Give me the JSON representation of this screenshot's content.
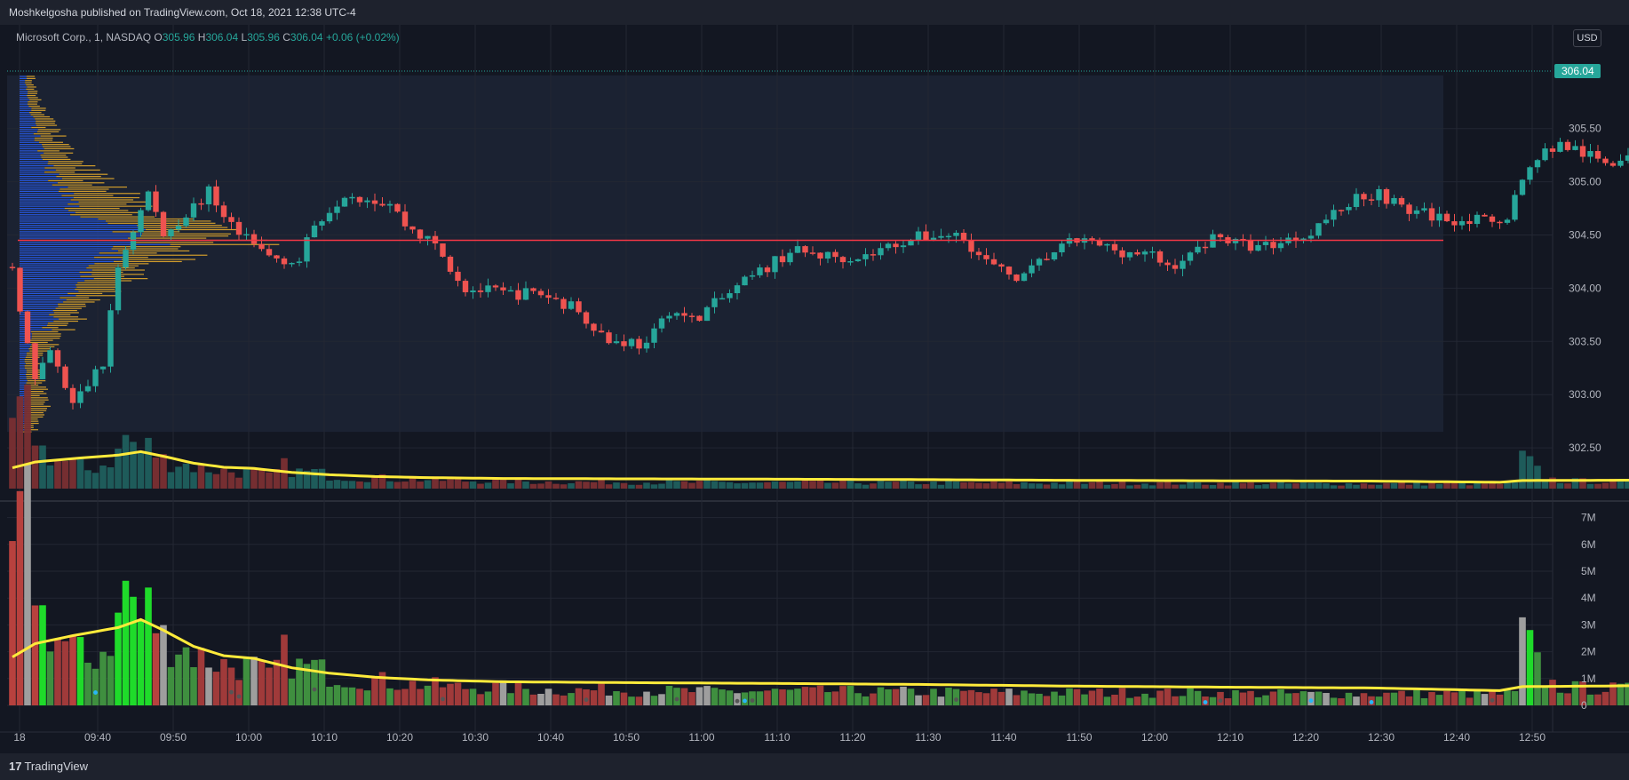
{
  "header": {
    "publisher": "Moshkelgosha published on TradingView.com, Oct 18, 2021 12:38 UTC-4"
  },
  "legend": {
    "symbol": "Microsoft Corp., 1, NASDAQ",
    "o_label": "O",
    "o": "305.96",
    "h_label": "H",
    "h": "306.04",
    "l_label": "L",
    "l": "305.96",
    "c_label": "C",
    "c": "306.04",
    "change": "+0.06 (+0.02%)"
  },
  "currency": "USD",
  "last_price": "306.04",
  "footer": {
    "logo_mark": "17",
    "logo_text": "TradingView"
  },
  "colors": {
    "background": "#131722",
    "up": "#26a69a",
    "down": "#ef5350",
    "ma_line": "#ffeb3b",
    "poc_line": "#f23645",
    "profile_up": "#2962ff",
    "profile_down": "#f0b12c",
    "vol_green": "#4caf50",
    "vol_red": "#c0504d",
    "vol_gray": "#9e9e9e",
    "vol_bright": "#1fdb2a"
  },
  "chart_data": [
    {
      "type": "candlestick",
      "name": "price",
      "y_ticks": [
        "302.50",
        "303.00",
        "303.50",
        "304.00",
        "304.50",
        "305.00",
        "305.50"
      ],
      "ylim": [
        302.2,
        306.3
      ],
      "poc_price": 304.45,
      "close_path": [
        [
          0,
          304.2
        ],
        [
          3,
          303.1
        ],
        [
          5,
          303.4
        ],
        [
          8,
          302.9
        ],
        [
          12,
          303.3
        ],
        [
          14,
          304.2
        ],
        [
          18,
          304.9
        ],
        [
          20,
          304.5
        ],
        [
          26,
          304.9
        ],
        [
          30,
          304.5
        ],
        [
          34,
          304.3
        ],
        [
          38,
          304.25
        ],
        [
          40,
          304.6
        ],
        [
          44,
          304.9
        ],
        [
          50,
          304.8
        ],
        [
          52,
          304.6
        ],
        [
          56,
          304.4
        ],
        [
          60,
          304.0
        ],
        [
          65,
          303.95
        ],
        [
          70,
          303.95
        ],
        [
          75,
          303.8
        ],
        [
          79,
          303.5
        ],
        [
          82,
          303.5
        ],
        [
          84,
          303.45
        ],
        [
          87,
          303.8
        ],
        [
          90,
          303.7
        ],
        [
          93,
          303.85
        ],
        [
          98,
          304.1
        ],
        [
          103,
          304.35
        ],
        [
          108,
          304.3
        ],
        [
          113,
          304.3
        ],
        [
          118,
          304.45
        ],
        [
          122,
          304.5
        ],
        [
          126,
          304.5
        ],
        [
          128,
          304.3
        ],
        [
          131,
          304.15
        ],
        [
          134,
          304.1
        ],
        [
          137,
          304.3
        ],
        [
          141,
          304.45
        ],
        [
          147,
          304.35
        ],
        [
          151,
          304.3
        ],
        [
          153,
          304.2
        ],
        [
          156,
          304.3
        ],
        [
          159,
          304.5
        ],
        [
          163,
          304.4
        ],
        [
          166,
          304.4
        ],
        [
          171,
          304.5
        ],
        [
          175,
          304.7
        ],
        [
          178,
          304.85
        ],
        [
          181,
          304.9
        ],
        [
          184,
          304.75
        ],
        [
          187,
          304.7
        ],
        [
          190,
          304.65
        ],
        [
          193,
          304.65
        ],
        [
          196,
          304.6
        ],
        [
          198,
          304.7
        ],
        [
          200,
          305.0
        ],
        [
          202,
          305.25
        ],
        [
          205,
          305.35
        ],
        [
          207,
          305.3
        ],
        [
          210,
          305.2
        ],
        [
          214,
          305.2
        ],
        [
          218,
          305.25
        ],
        [
          222,
          305.2
        ],
        [
          224,
          305.05
        ],
        [
          226,
          305.0
        ],
        [
          229,
          305.2
        ],
        [
          232,
          305.35
        ],
        [
          235,
          305.4
        ],
        [
          238,
          305.35
        ],
        [
          240,
          305.5
        ],
        [
          242,
          305.7
        ],
        [
          243,
          305.95
        ],
        [
          244,
          306.04
        ]
      ],
      "profile_range": [
        302.65,
        306.0
      ],
      "profile_shape": [
        [
          302.7,
          18
        ],
        [
          302.9,
          32
        ],
        [
          303.1,
          26
        ],
        [
          303.3,
          20
        ],
        [
          303.5,
          42
        ],
        [
          303.8,
          75
        ],
        [
          304.0,
          105
        ],
        [
          304.2,
          145
        ],
        [
          304.35,
          205
        ],
        [
          304.45,
          270
        ],
        [
          304.55,
          210
        ],
        [
          304.75,
          150
        ],
        [
          304.95,
          105
        ],
        [
          305.15,
          72
        ],
        [
          305.35,
          52
        ],
        [
          305.55,
          35
        ],
        [
          305.75,
          22
        ],
        [
          306.0,
          14
        ]
      ]
    },
    {
      "type": "bar",
      "name": "volume",
      "x_ticks": [
        "18",
        "09:40",
        "09:50",
        "10:00",
        "10:10",
        "10:20",
        "10:30",
        "10:40",
        "10:50",
        "11:00",
        "11:10",
        "11:20",
        "11:30",
        "11:40",
        "11:50",
        "12:00",
        "12:10",
        "12:20",
        "12:30",
        "12:40",
        "12:50"
      ],
      "y_ticks": [
        "0",
        "1M",
        "2M",
        "3M",
        "4M",
        "5M",
        "6M",
        "7M"
      ],
      "ylim": [
        0,
        7600000
      ],
      "volume_path_millions": [
        [
          0,
          5.8
        ],
        [
          2,
          7.0
        ],
        [
          4,
          3.5
        ],
        [
          6,
          2.6
        ],
        [
          8,
          2.2
        ],
        [
          10,
          1.7
        ],
        [
          12,
          2.2
        ],
        [
          14,
          3.2
        ],
        [
          15,
          4.8
        ],
        [
          17,
          3.3
        ],
        [
          18,
          3.8
        ],
        [
          20,
          2.6
        ],
        [
          22,
          2.4
        ],
        [
          24,
          2.0
        ],
        [
          28,
          1.6
        ],
        [
          32,
          1.5
        ],
        [
          34,
          1.1
        ],
        [
          36,
          2.0
        ],
        [
          38,
          1.5
        ],
        [
          40,
          1.5
        ],
        [
          42,
          1.2
        ],
        [
          44,
          1.1
        ],
        [
          46,
          1.0
        ],
        [
          48,
          1.0
        ],
        [
          50,
          0.9
        ],
        [
          55,
          0.8
        ],
        [
          60,
          0.7
        ],
        [
          65,
          0.7
        ],
        [
          70,
          0.6
        ],
        [
          80,
          0.6
        ],
        [
          90,
          0.55
        ],
        [
          110,
          0.55
        ],
        [
          130,
          0.5
        ],
        [
          150,
          0.5
        ],
        [
          170,
          0.45
        ],
        [
          190,
          0.45
        ],
        [
          199,
          0.45
        ],
        [
          200,
          2.9
        ],
        [
          201,
          2.2
        ],
        [
          203,
          1.0
        ],
        [
          205,
          0.7
        ],
        [
          220,
          0.6
        ],
        [
          235,
          0.5
        ],
        [
          240,
          0.55
        ],
        [
          242,
          3.0
        ],
        [
          243,
          3.0
        ],
        [
          244,
          0.3
        ]
      ],
      "ma_path_millions": [
        [
          0,
          1.8
        ],
        [
          3,
          2.3
        ],
        [
          8,
          2.6
        ],
        [
          14,
          2.9
        ],
        [
          17,
          3.2
        ],
        [
          20,
          2.8
        ],
        [
          24,
          2.2
        ],
        [
          28,
          1.85
        ],
        [
          32,
          1.75
        ],
        [
          37,
          1.4
        ],
        [
          42,
          1.2
        ],
        [
          48,
          1.05
        ],
        [
          55,
          0.95
        ],
        [
          65,
          0.88
        ],
        [
          80,
          0.85
        ],
        [
          100,
          0.82
        ],
        [
          120,
          0.78
        ],
        [
          140,
          0.72
        ],
        [
          160,
          0.68
        ],
        [
          180,
          0.65
        ],
        [
          197,
          0.55
        ],
        [
          200,
          0.7
        ],
        [
          210,
          0.72
        ],
        [
          220,
          0.75
        ],
        [
          228,
          0.8
        ],
        [
          232,
          0.62
        ],
        [
          238,
          0.56
        ],
        [
          241,
          0.6
        ],
        [
          244,
          0.85
        ]
      ]
    }
  ]
}
